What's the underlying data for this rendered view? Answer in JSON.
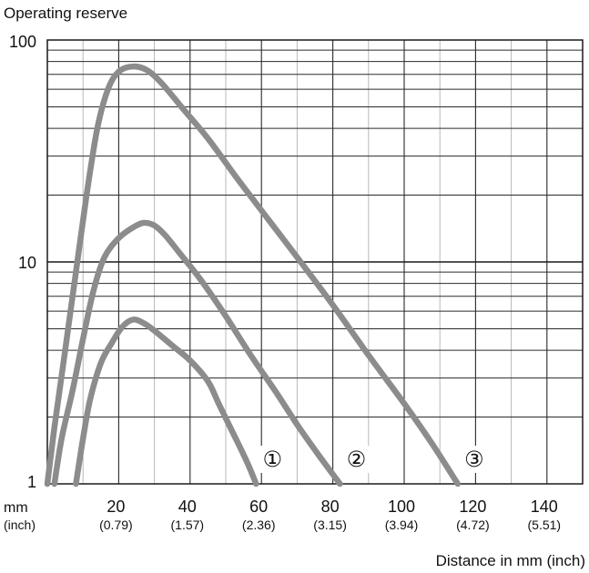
{
  "chart_data": {
    "type": "line",
    "title": "",
    "ylabel": "Operating reserve",
    "xlabel": "Distance in mm (inch)",
    "x_unit_label": "mm",
    "x_unit_label_secondary": "(inch)",
    "xlim": [
      0,
      150
    ],
    "ylim": [
      1,
      100
    ],
    "yscale": "log",
    "grid": true,
    "x_ticks": [
      {
        "value": 20,
        "label": "20",
        "sublabel": "(0.79)"
      },
      {
        "value": 40,
        "label": "40",
        "sublabel": "(1.57)"
      },
      {
        "value": 60,
        "label": "60",
        "sublabel": "(2.36)"
      },
      {
        "value": 80,
        "label": "80",
        "sublabel": "(3.15)"
      },
      {
        "value": 100,
        "label": "100",
        "sublabel": "(3.94)"
      },
      {
        "value": 120,
        "label": "120",
        "sublabel": "(4.72)"
      },
      {
        "value": 140,
        "label": "140",
        "sublabel": "(5.51)"
      }
    ],
    "y_ticks": [
      {
        "value": 1,
        "label": "1"
      },
      {
        "value": 10,
        "label": "10"
      },
      {
        "value": 100,
        "label": "100"
      }
    ],
    "series": [
      {
        "marker": "①",
        "color": "#8c8c8c",
        "points": [
          [
            8,
            1
          ],
          [
            10,
            1.6
          ],
          [
            12,
            2.4
          ],
          [
            15,
            3.5
          ],
          [
            18,
            4.3
          ],
          [
            21,
            5.1
          ],
          [
            24,
            5.5
          ],
          [
            27,
            5.3
          ],
          [
            30,
            4.9
          ],
          [
            35,
            4.2
          ],
          [
            40,
            3.6
          ],
          [
            45,
            2.9
          ],
          [
            48,
            2.3
          ],
          [
            52,
            1.7
          ],
          [
            56,
            1.25
          ],
          [
            58.5,
            1
          ]
        ]
      },
      {
        "marker": "②",
        "color": "#8c8c8c",
        "points": [
          [
            2,
            1
          ],
          [
            4,
            1.6
          ],
          [
            7,
            2.6
          ],
          [
            10,
            4.5
          ],
          [
            13,
            7.5
          ],
          [
            16,
            10.5
          ],
          [
            20,
            12.8
          ],
          [
            24,
            14.3
          ],
          [
            27,
            15
          ],
          [
            30,
            14.6
          ],
          [
            33,
            13.2
          ],
          [
            37,
            11
          ],
          [
            43,
            8.3
          ],
          [
            50,
            5.7
          ],
          [
            57,
            3.8
          ],
          [
            64,
            2.6
          ],
          [
            70,
            1.85
          ],
          [
            76,
            1.35
          ],
          [
            82,
            1
          ]
        ]
      },
      {
        "marker": "③",
        "color": "#8c8c8c",
        "points": [
          [
            0,
            1
          ],
          [
            2,
            1.8
          ],
          [
            5,
            4
          ],
          [
            8,
            9
          ],
          [
            11,
            20
          ],
          [
            14,
            40
          ],
          [
            17,
            60
          ],
          [
            20,
            72
          ],
          [
            24,
            76
          ],
          [
            28,
            73
          ],
          [
            32,
            64
          ],
          [
            38,
            49
          ],
          [
            45,
            36
          ],
          [
            53,
            24
          ],
          [
            62,
            15.5
          ],
          [
            70,
            10.5
          ],
          [
            80,
            6.4
          ],
          [
            90,
            3.8
          ],
          [
            100,
            2.3
          ],
          [
            108,
            1.5
          ],
          [
            115,
            1
          ]
        ]
      }
    ]
  }
}
